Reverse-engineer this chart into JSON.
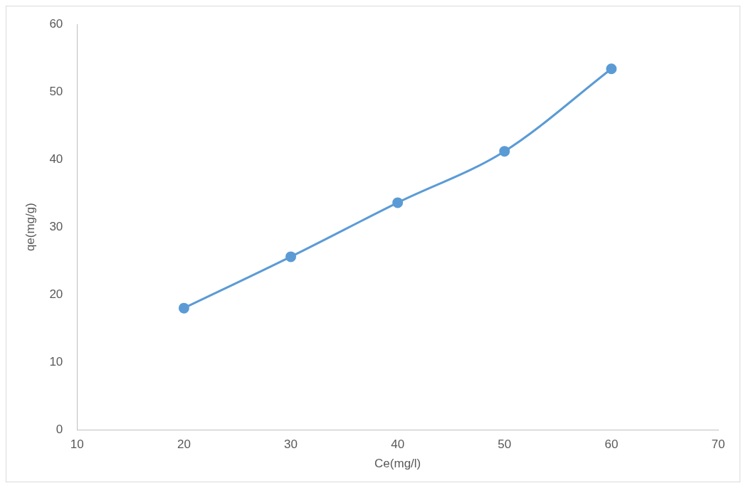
{
  "chart_data": {
    "type": "line",
    "xlabel": "Ce(mg/l)",
    "ylabel": "qe(mg/g)",
    "x": [
      20,
      30,
      40,
      50,
      60
    ],
    "series": [
      {
        "color": "#5b9bd5",
        "values": [
          18.0,
          25.6,
          33.6,
          41.2,
          53.4
        ]
      }
    ],
    "xlim": [
      10,
      70
    ],
    "xticks": [
      10,
      20,
      30,
      40,
      50,
      60,
      70
    ],
    "ylim": [
      0,
      60
    ],
    "yticks": [
      0,
      10,
      20,
      30,
      40,
      50,
      60
    ],
    "grid": false,
    "legend": false,
    "marker": "circle",
    "line_style": "solid"
  }
}
